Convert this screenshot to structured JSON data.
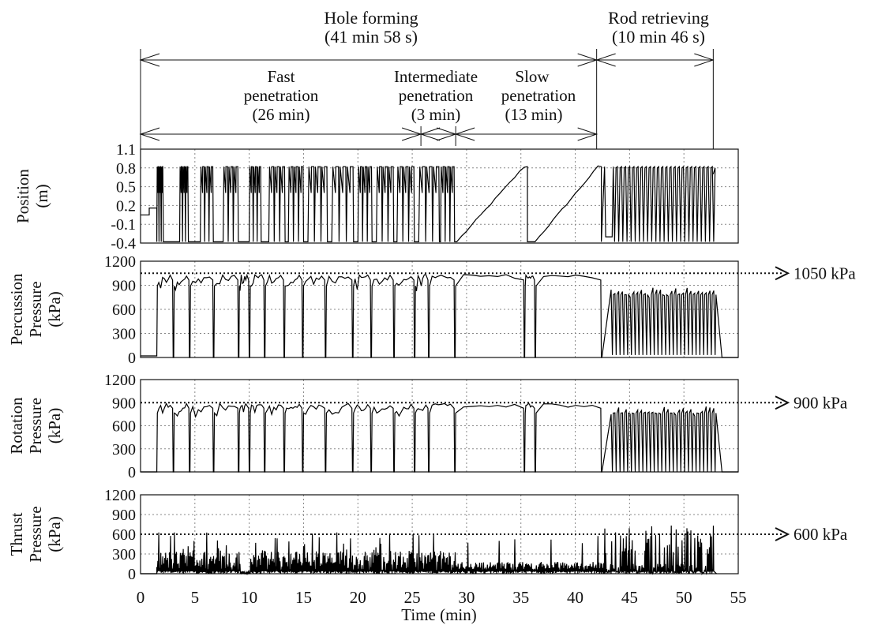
{
  "phases": {
    "hole_forming": {
      "label": "Hole forming",
      "duration": "(41 min 58 s)"
    },
    "rod_retrieving": {
      "label": "Rod retrieving",
      "duration": "(10 min 46 s)"
    },
    "fast": {
      "line1": "Fast",
      "line2": "penetration",
      "line3": "(26 min)"
    },
    "intermediate": {
      "line1": "Intermediate",
      "line2": "penetration",
      "line3": "(3 min)"
    },
    "slow": {
      "line1": "Slow",
      "line2": "penetration",
      "line3": "(13 min)"
    }
  },
  "chart_data": [
    {
      "type": "line",
      "panel": "position",
      "ylabel_lines": [
        "Position",
        "(m)"
      ],
      "yticks": [
        "1.1",
        "0.8",
        "0.5",
        "0.2",
        "-0.1",
        "-0.4"
      ],
      "ylim": [
        -0.4,
        1.1
      ],
      "xlim": [
        0,
        55
      ],
      "grid": true,
      "description_series": "Sawtooth: rod advances slowly then rapidly retracts; rapid cycling during rod retrieving",
      "cycles": [
        {
          "x0": 1.5,
          "x1": 2.1
        },
        {
          "x0": 3.6,
          "x1": 4.4
        },
        {
          "x0": 5.5,
          "x1": 6.7
        },
        {
          "x0": 7.6,
          "x1": 9.0
        },
        {
          "x0": 10.0,
          "x1": 11.1
        },
        {
          "x0": 11.8,
          "x1": 13.3
        },
        {
          "x0": 13.6,
          "x1": 15.0
        },
        {
          "x0": 15.4,
          "x1": 17.2
        },
        {
          "x0": 17.6,
          "x1": 19.6
        },
        {
          "x0": 20.0,
          "x1": 21.3
        },
        {
          "x0": 21.7,
          "x1": 23.3
        },
        {
          "x0": 23.6,
          "x1": 25.2
        },
        {
          "x0": 25.6,
          "x1": 27.5
        },
        {
          "x0": 27.6,
          "x1": 28.9
        },
        {
          "x0": 29.1,
          "x1": 35.6
        },
        {
          "x0": 36.3,
          "x1": 42.4
        }
      ],
      "threshold": null
    },
    {
      "type": "line",
      "panel": "percussion",
      "ylabel_lines": [
        "Percussion",
        "Pressure",
        "(kPa)"
      ],
      "yticks": [
        "1200",
        "900",
        "600",
        "300",
        "0"
      ],
      "ylim": [
        0,
        1200
      ],
      "xlim": [
        0,
        55
      ],
      "grid": true,
      "threshold": {
        "value": 1050,
        "label": "1050 kPa"
      }
    },
    {
      "type": "line",
      "panel": "rotation",
      "ylabel_lines": [
        "Rotation",
        "Pressure",
        "(kPa)"
      ],
      "yticks": [
        "1200",
        "900",
        "600",
        "300",
        "0"
      ],
      "ylim": [
        0,
        1200
      ],
      "xlim": [
        0,
        55
      ],
      "grid": true,
      "threshold": {
        "value": 900,
        "label": "900 kPa"
      }
    },
    {
      "type": "line",
      "panel": "thrust",
      "ylabel_lines": [
        "Thrust",
        "Pressure",
        "(kPa)"
      ],
      "yticks": [
        "1200",
        "900",
        "600",
        "300",
        "0"
      ],
      "ylim": [
        0,
        1200
      ],
      "xlim": [
        0,
        55
      ],
      "grid": true,
      "threshold": {
        "value": 600,
        "label": "600 kPa"
      }
    }
  ],
  "xaxis": {
    "label": "Time (min)",
    "ticks": [
      "0",
      "5",
      "10",
      "15",
      "20",
      "25",
      "30",
      "35",
      "40",
      "45",
      "50",
      "55"
    ]
  }
}
